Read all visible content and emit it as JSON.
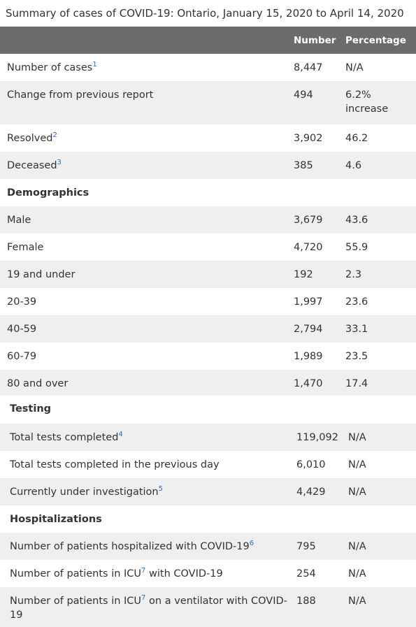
{
  "caption": "Summary of cases of COVID-19: Ontario, January 15, 2020 to April 14, 2020",
  "headers": {
    "number": "Number",
    "percentage": "Percentage"
  },
  "rows": [
    {
      "label": "Number of cases",
      "sup": "1",
      "number": "8,447",
      "percentage": "N/A"
    },
    {
      "label": "Change from previous report",
      "number": "494",
      "percentage": "6.2%",
      "percentage2": "increase"
    },
    {
      "label": "Resolved",
      "sup": "2",
      "number": "3,902",
      "percentage": "46.2"
    },
    {
      "label": "Deceased",
      "sup": "3",
      "number": "385",
      "percentage": "4.6"
    },
    {
      "label": "Demographics"
    },
    {
      "label": "Male",
      "number": "3,679",
      "percentage": "43.6"
    },
    {
      "label": "Female",
      "number": "4,720",
      "percentage": "55.9"
    },
    {
      "label": "19 and under",
      "number": "192",
      "percentage": "2.3"
    },
    {
      "label": "20-39",
      "number": "1,997",
      "percentage": "23.6"
    },
    {
      "label": "40-59",
      "number": "2,794",
      "percentage": "33.1"
    },
    {
      "label": "60-79",
      "number": "1,989",
      "percentage": "23.5"
    },
    {
      "label": "80 and over",
      "number": "1,470",
      "percentage": "17.4"
    }
  ],
  "rows2": [
    {
      "label": "Testing"
    },
    {
      "label": "Total tests completed",
      "sup": "4",
      "number": "119,092",
      "percentage": "N/A"
    },
    {
      "label": "Total tests completed in the previous day",
      "number": "6,010",
      "percentage": "N/A"
    },
    {
      "label": "Currently under investigation",
      "sup": "5",
      "number": "4,429",
      "percentage": "N/A"
    },
    {
      "label": "Hospitalizations"
    },
    {
      "label": "Number of patients hospitalized with COVID-19",
      "sup": "6",
      "number": "795",
      "percentage": "N/A"
    },
    {
      "label_a": "Number of patients in ICU",
      "sup": "7",
      "label_b": " with COVID-19",
      "number": "254",
      "percentage": "N/A"
    },
    {
      "label_a": "Number of patients in ICU",
      "sup": "7",
      "label_b": " on a ventilator with COVID-",
      "label_c": "19",
      "number": "188",
      "percentage": "N/A"
    }
  ]
}
